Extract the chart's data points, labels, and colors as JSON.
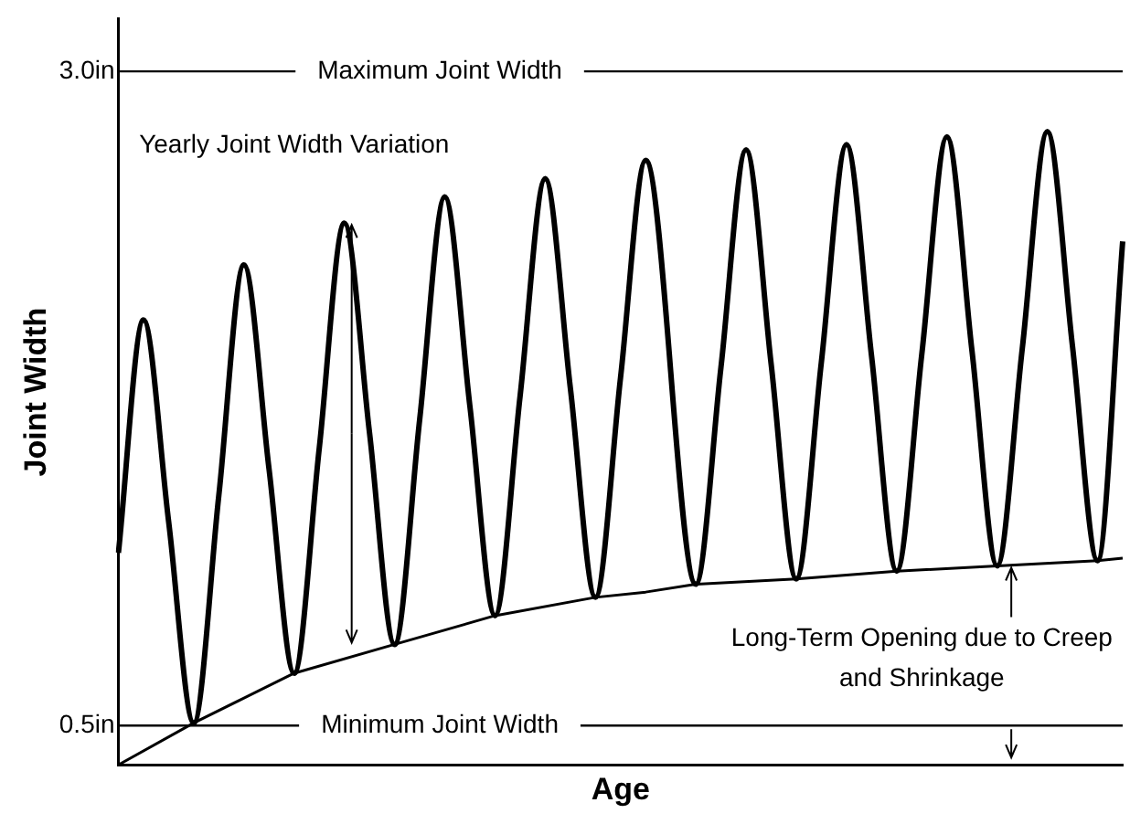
{
  "chart_data": {
    "type": "line",
    "xlabel": "Age",
    "ylabel": "Joint Width",
    "categories": [
      null,
      null,
      null,
      null,
      null,
      null,
      null,
      null,
      null,
      null,
      null,
      null,
      null,
      null,
      null,
      null,
      null,
      null,
      null,
      null,
      null,
      null,
      null,
      null,
      null,
      null,
      null,
      null,
      null,
      null,
      null,
      null,
      null,
      null,
      null,
      null,
      null,
      null,
      null,
      null,
      null
    ],
    "series": [
      {
        "color": "#000000",
        "values": [
          1.16,
          2.05,
          1.28,
          0.51,
          1.38,
          2.26,
          1.48,
          0.7,
          1.56,
          2.42,
          1.62,
          0.81,
          1.67,
          2.52,
          1.72,
          0.92,
          1.76,
          2.59,
          1.79,
          0.99,
          1.83,
          2.66,
          null,
          1.04,
          1.87,
          2.7,
          1.88,
          1.06,
          1.89,
          2.72,
          1.91,
          1.09,
          1.92,
          2.75,
          1.93,
          1.11,
          1.94,
          2.77,
          1.95,
          1.13,
          2.35
        ]
      },
      {
        "color": "#000000",
        "values": [
          0.35,
          null,
          null,
          0.51,
          null,
          null,
          null,
          0.7,
          null,
          null,
          null,
          0.81,
          null,
          null,
          null,
          0.92,
          null,
          null,
          null,
          0.99,
          null,
          1.01,
          null,
          1.04,
          null,
          null,
          null,
          1.06,
          null,
          null,
          null,
          1.09,
          null,
          null,
          null,
          1.11,
          null,
          null,
          null,
          1.13,
          1.14
        ]
      }
    ],
    "ylim": [
      0.35,
      3.2
    ],
    "yticks": [
      {
        "value": 0.5,
        "label": "0.5in"
      },
      {
        "value": 3.0,
        "label": "3.0in"
      }
    ],
    "tick_labels": "y",
    "grid": false,
    "legend": false,
    "marker": "none",
    "line_style": "solid",
    "ref_lines": [
      {
        "axis": "y",
        "value": 3.0,
        "label": "Maximum Joint Width"
      },
      {
        "axis": "y",
        "value": 0.5,
        "label": "Minimum Joint Width"
      }
    ],
    "annotations": [
      "Yearly Joint Width Variation",
      "Long-Term Opening due to Creep and Shrinkage"
    ]
  }
}
